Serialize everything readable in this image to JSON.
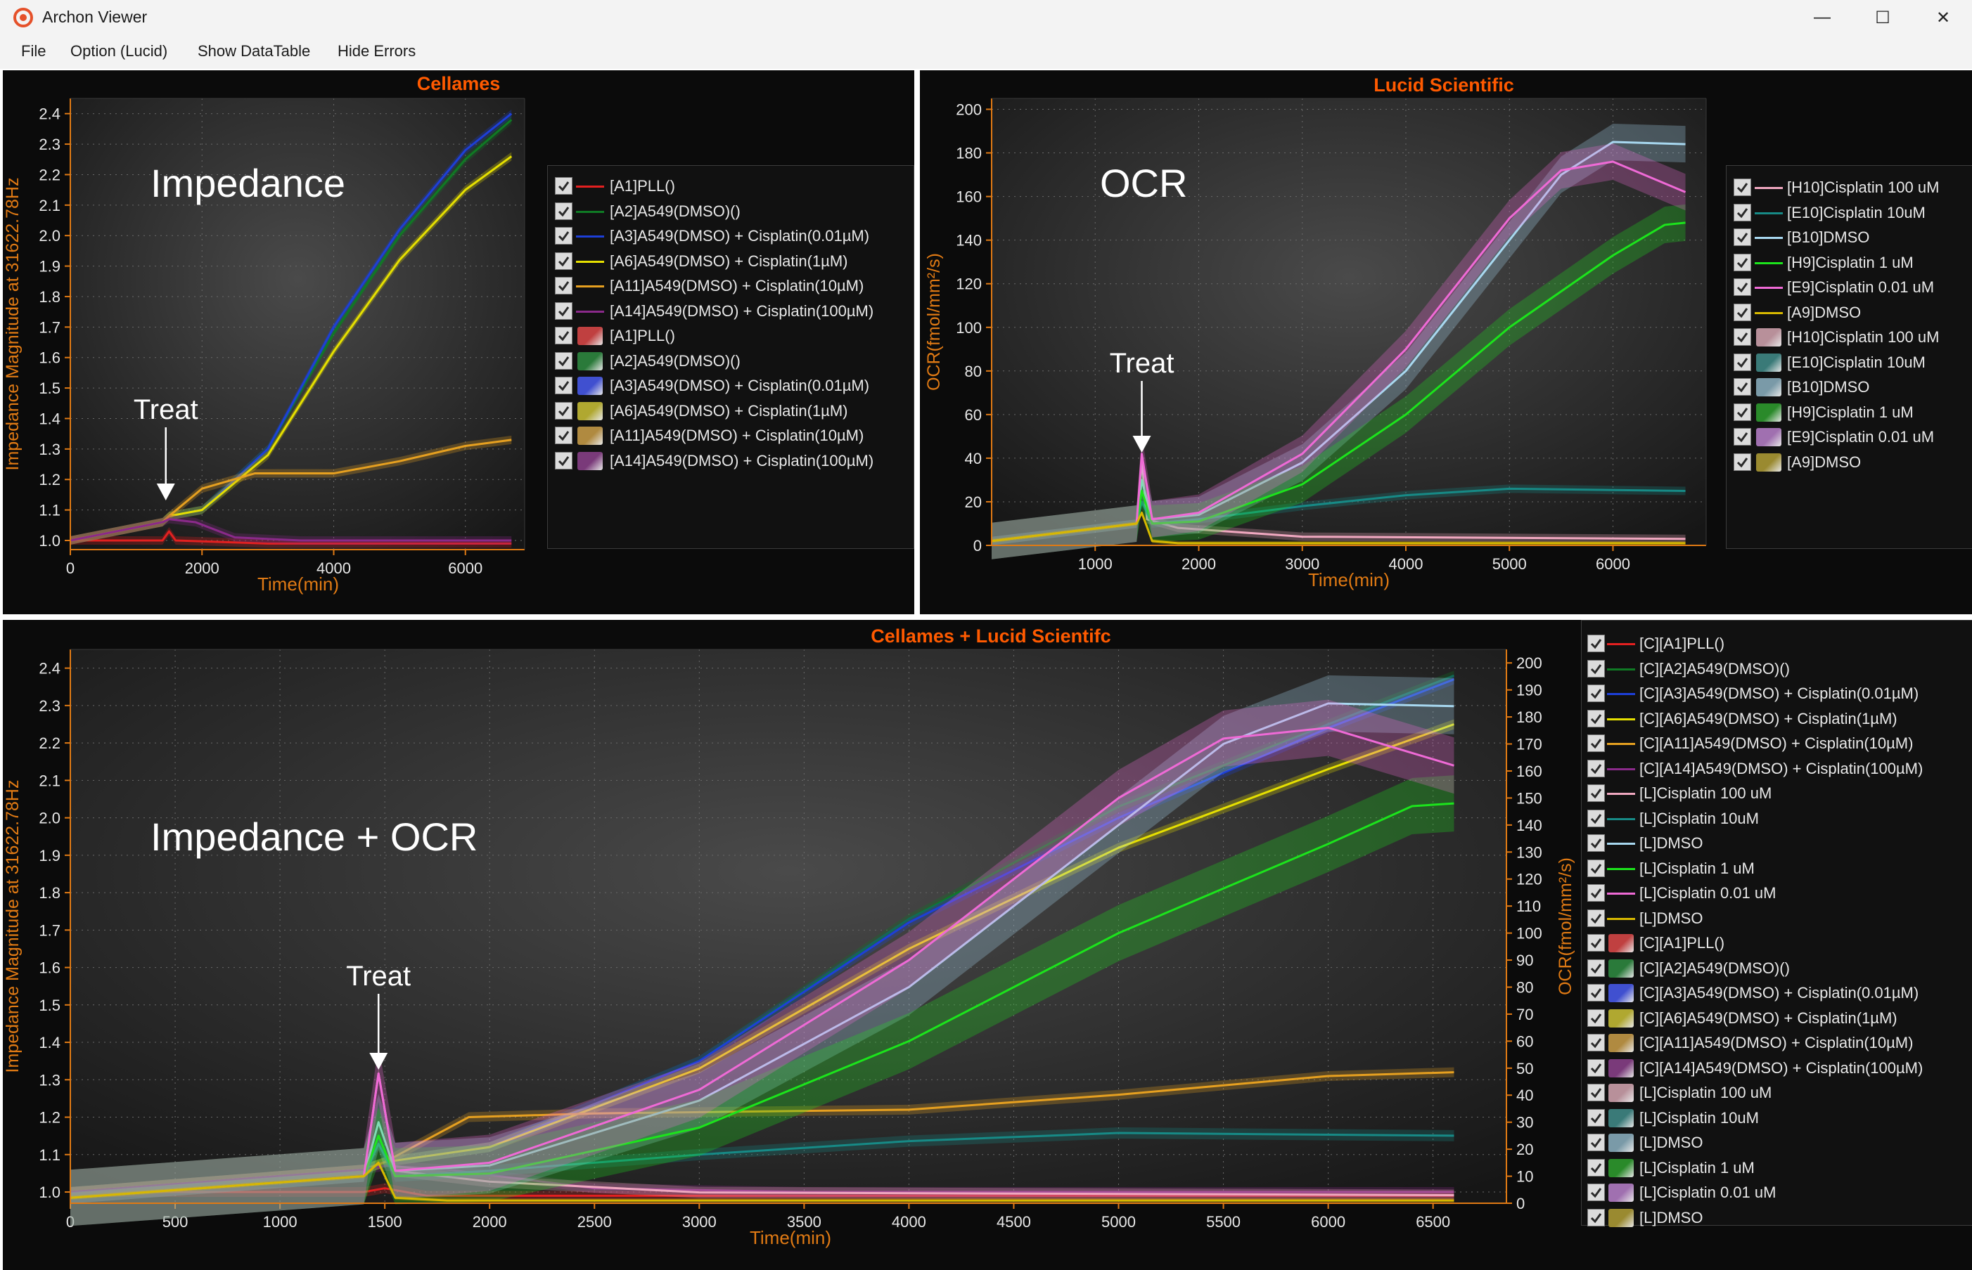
{
  "window": {
    "title": "Archon Viewer",
    "minimize": "—",
    "maximize": "☐",
    "close": "✕"
  },
  "menu": [
    "File",
    "Option (Lucid)",
    "Show DataTable",
    "Hide Errors"
  ],
  "colors": {
    "red": "#e32020",
    "green": "#0f7a24",
    "blue": "#1d3fd8",
    "yellow": "#e6e000",
    "orange": "#e6a020",
    "purple": "#8a2a8a",
    "pink": "#f0a8c0",
    "teal": "#178a86",
    "lightblue": "#a8d8f0",
    "lime": "#1ce41c",
    "magenta": "#ef6ad6",
    "gold": "#d7b800",
    "axis": "#e07a14",
    "title": "#ff5a00"
  },
  "panels": {
    "cellames": {
      "title": "Cellames",
      "annotation": "Impedance",
      "treat_label": "Treat",
      "ylabel": "Impedance Magnitude at 31622.78Hz",
      "xlabel": "Time(min)",
      "yticks": [
        "2.4",
        "2.3",
        "2.2",
        "2.1",
        "2.0",
        "1.9",
        "1.8",
        "1.7",
        "1.6",
        "1.5",
        "1.4",
        "1.3",
        "1.2",
        "1.1",
        "1.0"
      ],
      "xticks": [
        "0",
        "2000",
        "4000",
        "6000"
      ],
      "legend": [
        {
          "label": "[A1]PLL()",
          "kind": "line",
          "color": "#e32020"
        },
        {
          "label": "[A2]A549(DMSO)()",
          "kind": "line",
          "color": "#0f7a24"
        },
        {
          "label": "[A3]A549(DMSO) + Cisplatin(0.01µM)",
          "kind": "line",
          "color": "#1d3fd8"
        },
        {
          "label": "[A6]A549(DMSO) + Cisplatin(1µM)",
          "kind": "line",
          "color": "#e6e000"
        },
        {
          "label": "[A11]A549(DMSO) + Cisplatin(10µM)",
          "kind": "line",
          "color": "#e6a020"
        },
        {
          "label": "[A14]A549(DMSO) + Cisplatin(100µM)",
          "kind": "line",
          "color": "#8a2a8a"
        },
        {
          "label": "[A1]PLL()",
          "kind": "band",
          "color": "#c04040"
        },
        {
          "label": "[A2]A549(DMSO)()",
          "kind": "band",
          "color": "#2a7a3a"
        },
        {
          "label": "[A3]A549(DMSO) + Cisplatin(0.01µM)",
          "kind": "band",
          "color": "#4050d0"
        },
        {
          "label": "[A6]A549(DMSO) + Cisplatin(1µM)",
          "kind": "band",
          "color": "#b0a830"
        },
        {
          "label": "[A11]A549(DMSO) + Cisplatin(10µM)",
          "kind": "band",
          "color": "#b08a40"
        },
        {
          "label": "[A14]A549(DMSO) + Cisplatin(100µM)",
          "kind": "band",
          "color": "#7a3a7a"
        }
      ]
    },
    "lucid": {
      "title": "Lucid Scientific",
      "annotation": "OCR",
      "treat_label": "Treat",
      "ylabel": "OCR(fmol/mm²/s)",
      "xlabel": "Time(min)",
      "yticks": [
        "200",
        "180",
        "160",
        "140",
        "120",
        "100",
        "80",
        "60",
        "40",
        "20",
        "0"
      ],
      "xticks": [
        "1000",
        "2000",
        "3000",
        "4000",
        "5000",
        "6000"
      ],
      "legend": [
        {
          "label": "[H10]Cisplatin 100 uM",
          "kind": "line",
          "color": "#f0a8c0"
        },
        {
          "label": "[E10]Cisplatin 10uM",
          "kind": "line",
          "color": "#178a86"
        },
        {
          "label": "[B10]DMSO",
          "kind": "line",
          "color": "#a8d8f0"
        },
        {
          "label": "[H9]Cisplatin 1 uM",
          "kind": "line",
          "color": "#1ce41c"
        },
        {
          "label": "[E9]Cisplatin 0.01 uM",
          "kind": "line",
          "color": "#ef6ad6"
        },
        {
          "label": "[A9]DMSO",
          "kind": "line",
          "color": "#d7b800"
        },
        {
          "label": "[H10]Cisplatin 100 uM",
          "kind": "band",
          "color": "#b8909a"
        },
        {
          "label": "[E10]Cisplatin 10uM",
          "kind": "band",
          "color": "#3a7a78"
        },
        {
          "label": "[B10]DMSO",
          "kind": "band",
          "color": "#7a9aa8"
        },
        {
          "label": "[H9]Cisplatin 1 uM",
          "kind": "band",
          "color": "#2a8a2a"
        },
        {
          "label": "[E9]Cisplatin 0.01 uM",
          "kind": "band",
          "color": "#a070b0"
        },
        {
          "label": "[A9]DMSO",
          "kind": "band",
          "color": "#9a8a30"
        }
      ]
    },
    "combined": {
      "title": "Cellames + Lucid Scientifc",
      "annotation": "Impedance + OCR",
      "treat_label": "Treat",
      "ylabel": "Impedance Magnitude at 31622.78Hz",
      "ylabel_right": "OCR(fmol/mm²/s)",
      "xlabel": "Time(min)",
      "yticks": [
        "2.4",
        "2.3",
        "2.2",
        "2.1",
        "2.0",
        "1.9",
        "1.8",
        "1.7",
        "1.6",
        "1.5",
        "1.4",
        "1.3",
        "1.2",
        "1.1",
        "1.0"
      ],
      "yticks_right": [
        "200",
        "190",
        "180",
        "170",
        "160",
        "150",
        "140",
        "130",
        "120",
        "110",
        "100",
        "90",
        "80",
        "70",
        "60",
        "50",
        "40",
        "30",
        "20",
        "10",
        "0"
      ],
      "xticks": [
        "0",
        "500",
        "1000",
        "1500",
        "2000",
        "2500",
        "3000",
        "3500",
        "4000",
        "4500",
        "5000",
        "5500",
        "6000",
        "6500"
      ],
      "legend": [
        {
          "label": "[C][A1]PLL()",
          "kind": "line",
          "color": "#e32020"
        },
        {
          "label": "[C][A2]A549(DMSO)()",
          "kind": "line",
          "color": "#0f7a24"
        },
        {
          "label": "[C][A3]A549(DMSO) + Cisplatin(0.01µM)",
          "kind": "line",
          "color": "#1d3fd8"
        },
        {
          "label": "[C][A6]A549(DMSO) + Cisplatin(1µM)",
          "kind": "line",
          "color": "#e6e000"
        },
        {
          "label": "[C][A11]A549(DMSO) + Cisplatin(10µM)",
          "kind": "line",
          "color": "#e6a020"
        },
        {
          "label": "[C][A14]A549(DMSO) + Cisplatin(100µM)",
          "kind": "line",
          "color": "#8a2a8a"
        },
        {
          "label": "[L]Cisplatin 100 uM",
          "kind": "line",
          "color": "#f0a8c0"
        },
        {
          "label": "[L]Cisplatin 10uM",
          "kind": "line",
          "color": "#178a86"
        },
        {
          "label": "[L]DMSO",
          "kind": "line",
          "color": "#a8d8f0"
        },
        {
          "label": "[L]Cisplatin 1 uM",
          "kind": "line",
          "color": "#1ce41c"
        },
        {
          "label": "[L]Cisplatin 0.01 uM",
          "kind": "line",
          "color": "#ef6ad6"
        },
        {
          "label": "[L]DMSO",
          "kind": "line",
          "color": "#d7b800"
        },
        {
          "label": "[C][A1]PLL()",
          "kind": "band",
          "color": "#c04040"
        },
        {
          "label": "[C][A2]A549(DMSO)()",
          "kind": "band",
          "color": "#2a7a3a"
        },
        {
          "label": "[C][A3]A549(DMSO) + Cisplatin(0.01µM)",
          "kind": "band",
          "color": "#4050d0"
        },
        {
          "label": "[C][A6]A549(DMSO) + Cisplatin(1µM)",
          "kind": "band",
          "color": "#b0a830"
        },
        {
          "label": "[C][A11]A549(DMSO) + Cisplatin(10µM)",
          "kind": "band",
          "color": "#b08a40"
        },
        {
          "label": "[C][A14]A549(DMSO) + Cisplatin(100µM)",
          "kind": "band",
          "color": "#7a3a7a"
        },
        {
          "label": "[L]Cisplatin 100 uM",
          "kind": "band",
          "color": "#b8909a"
        },
        {
          "label": "[L]Cisplatin 10uM",
          "kind": "band",
          "color": "#3a7a78"
        },
        {
          "label": "[L]DMSO",
          "kind": "band",
          "color": "#7a9aa8"
        },
        {
          "label": "[L]Cisplatin 1 uM",
          "kind": "band",
          "color": "#2a8a2a"
        },
        {
          "label": "[L]Cisplatin 0.01 uM",
          "kind": "band",
          "color": "#a070b0"
        },
        {
          "label": "[L]DMSO",
          "kind": "band",
          "color": "#9a8a30"
        }
      ]
    }
  },
  "chart_data": [
    {
      "type": "line",
      "title": "Cellames",
      "xlabel": "Time(min)",
      "ylabel": "Impedance Magnitude at 31622.78Hz",
      "xlim": [
        0,
        6900
      ],
      "ylim": [
        0.97,
        2.45
      ],
      "series": [
        {
          "name": "[A1]PLL()",
          "x": [
            0,
            1400,
            1500,
            1600,
            3000,
            6700
          ],
          "y": [
            1.0,
            1.0,
            1.03,
            1.0,
            0.99,
            0.99
          ]
        },
        {
          "name": "[A2]A549(DMSO)()",
          "x": [
            0,
            1400,
            1500,
            2000,
            3000,
            4000,
            5000,
            6000,
            6700
          ],
          "y": [
            1.0,
            1.06,
            1.08,
            1.1,
            1.3,
            1.68,
            2.0,
            2.25,
            2.38
          ]
        },
        {
          "name": "[A3]A549(DMSO) + Cisplatin(0.01µM)",
          "x": [
            0,
            1400,
            1500,
            2000,
            3000,
            4000,
            5000,
            6000,
            6700
          ],
          "y": [
            1.0,
            1.06,
            1.08,
            1.1,
            1.3,
            1.7,
            2.02,
            2.28,
            2.4
          ]
        },
        {
          "name": "[A6]A549(DMSO) + Cisplatin(1µM)",
          "x": [
            0,
            1400,
            1500,
            2000,
            3000,
            4000,
            5000,
            6000,
            6700
          ],
          "y": [
            1.0,
            1.06,
            1.08,
            1.1,
            1.28,
            1.62,
            1.92,
            2.15,
            2.26
          ]
        },
        {
          "name": "[A11]A549(DMSO) + Cisplatin(10µM)",
          "x": [
            0,
            1400,
            1500,
            2000,
            2800,
            4000,
            5000,
            6000,
            6700
          ],
          "y": [
            1.0,
            1.06,
            1.08,
            1.17,
            1.22,
            1.22,
            1.26,
            1.31,
            1.33
          ]
        },
        {
          "name": "[A14]A549(DMSO) + Cisplatin(100µM)",
          "x": [
            0,
            1400,
            1500,
            1900,
            2500,
            3500,
            6700
          ],
          "y": [
            1.0,
            1.06,
            1.07,
            1.06,
            1.01,
            1.0,
            1.0
          ]
        }
      ]
    },
    {
      "type": "line",
      "title": "Lucid Scientific",
      "xlabel": "Time(min)",
      "ylabel": "OCR(fmol/mm²/s)",
      "xlim": [
        0,
        6900
      ],
      "ylim": [
        0,
        205
      ],
      "series": [
        {
          "name": "[H10]Cisplatin 100 uM",
          "x": [
            0,
            1400,
            1450,
            1500,
            1800,
            3000,
            6700
          ],
          "y": [
            2,
            10,
            38,
            12,
            8,
            4,
            3
          ]
        },
        {
          "name": "[E10]Cisplatin 10uM",
          "x": [
            0,
            1400,
            1450,
            1550,
            2000,
            3000,
            4000,
            5000,
            6700
          ],
          "y": [
            2,
            10,
            20,
            10,
            12,
            18,
            23,
            26,
            25
          ]
        },
        {
          "name": "[B10]DMSO",
          "x": [
            0,
            1400,
            1450,
            1550,
            2000,
            3000,
            4000,
            5000,
            5500,
            6000,
            6700
          ],
          "y": [
            2,
            10,
            30,
            12,
            14,
            38,
            80,
            140,
            170,
            185,
            184
          ]
        },
        {
          "name": "[H9]Cisplatin 1 uM",
          "x": [
            0,
            1400,
            1450,
            1550,
            2000,
            3000,
            4000,
            5000,
            6000,
            6500,
            6700
          ],
          "y": [
            2,
            10,
            25,
            10,
            11,
            28,
            60,
            100,
            133,
            147,
            148
          ]
        },
        {
          "name": "[E9]Cisplatin 0.01 uM",
          "x": [
            0,
            1400,
            1450,
            1550,
            2000,
            3000,
            4000,
            5000,
            5500,
            6000,
            6700
          ],
          "y": [
            2,
            10,
            42,
            12,
            15,
            42,
            90,
            150,
            172,
            176,
            162
          ]
        },
        {
          "name": "[A9]DMSO",
          "x": [
            0,
            1400,
            1450,
            1550,
            1800,
            6700
          ],
          "y": [
            2,
            10,
            15,
            2,
            1,
            1
          ]
        }
      ]
    },
    {
      "type": "line",
      "title": "Cellames + Lucid Scientifc",
      "xlabel": "Time(min)",
      "ylabel": "Impedance Magnitude at 31622.78Hz",
      "ylabel_right": "OCR(fmol/mm²/s)",
      "xlim": [
        0,
        6850
      ],
      "ylim": [
        0.97,
        2.45
      ],
      "ylim_right": [
        0,
        205
      ],
      "series": [
        {
          "name": "[C][A1]PLL()",
          "axis": "left",
          "x": [
            0,
            1400,
            1500,
            1700,
            3000,
            6600
          ],
          "y": [
            1.0,
            1.0,
            1.01,
            0.99,
            0.99,
            0.99
          ]
        },
        {
          "name": "[C][A2]A549(DMSO)()",
          "axis": "left",
          "x": [
            0,
            1400,
            1500,
            2000,
            3000,
            4000,
            5000,
            6000,
            6600
          ],
          "y": [
            1.0,
            1.06,
            1.08,
            1.12,
            1.35,
            1.73,
            2.03,
            2.25,
            2.38
          ]
        },
        {
          "name": "[C][A3]A549(DMSO) + Cisplatin(0.01µM)",
          "axis": "left",
          "x": [
            0,
            1400,
            1500,
            2000,
            3000,
            4000,
            5000,
            6000,
            6600
          ],
          "y": [
            1.0,
            1.06,
            1.08,
            1.12,
            1.35,
            1.72,
            2.0,
            2.24,
            2.37
          ]
        },
        {
          "name": "[C][A6]A549(DMSO) + Cisplatin(1µM)",
          "axis": "left",
          "x": [
            0,
            1400,
            1500,
            2000,
            3000,
            4000,
            5000,
            6000,
            6600
          ],
          "y": [
            1.0,
            1.06,
            1.08,
            1.12,
            1.33,
            1.65,
            1.92,
            2.13,
            2.25
          ]
        },
        {
          "name": "[C][A11]A549(DMSO) + Cisplatin(10µM)",
          "axis": "left",
          "x": [
            0,
            1400,
            1500,
            1900,
            2500,
            4000,
            5000,
            6000,
            6600
          ],
          "y": [
            1.0,
            1.06,
            1.08,
            1.2,
            1.21,
            1.22,
            1.26,
            1.31,
            1.32
          ]
        },
        {
          "name": "[C][A14]A549(DMSO) + Cisplatin(100µM)",
          "axis": "left",
          "x": [
            0,
            1400,
            1500,
            1800,
            2500,
            3500,
            6600
          ],
          "y": [
            1.0,
            1.06,
            1.07,
            1.06,
            1.01,
            1.0,
            1.0
          ]
        },
        {
          "name": "[L]Cisplatin 100 uM",
          "axis": "right",
          "x": [
            0,
            1400,
            1470,
            1550,
            2000,
            3000,
            6600
          ],
          "y": [
            2,
            10,
            48,
            12,
            8,
            4,
            3
          ]
        },
        {
          "name": "[L]Cisplatin 10uM",
          "axis": "right",
          "x": [
            0,
            1400,
            1470,
            1550,
            2000,
            3000,
            4000,
            5000,
            6600
          ],
          "y": [
            2,
            10,
            22,
            10,
            12,
            18,
            23,
            26,
            25
          ]
        },
        {
          "name": "[L]DMSO",
          "axis": "right",
          "x": [
            0,
            1400,
            1470,
            1550,
            2000,
            3000,
            4000,
            5000,
            5500,
            6000,
            6600
          ],
          "y": [
            2,
            10,
            30,
            12,
            14,
            38,
            80,
            140,
            170,
            185,
            184
          ]
        },
        {
          "name": "[L]Cisplatin 1 uM",
          "axis": "right",
          "x": [
            0,
            1400,
            1470,
            1550,
            2000,
            3000,
            4000,
            5000,
            6000,
            6400,
            6600
          ],
          "y": [
            2,
            10,
            25,
            10,
            11,
            28,
            60,
            100,
            133,
            147,
            148
          ]
        },
        {
          "name": "[L]Cisplatin 0.01 uM",
          "axis": "right",
          "x": [
            0,
            1400,
            1470,
            1550,
            2000,
            3000,
            4000,
            5000,
            5500,
            6000,
            6600
          ],
          "y": [
            2,
            10,
            48,
            12,
            15,
            42,
            90,
            150,
            172,
            176,
            162
          ]
        },
        {
          "name": "[L]DMSO",
          "axis": "right",
          "x": [
            0,
            1400,
            1470,
            1550,
            1800,
            6600
          ],
          "y": [
            2,
            10,
            15,
            2,
            1,
            1
          ]
        }
      ]
    }
  ]
}
